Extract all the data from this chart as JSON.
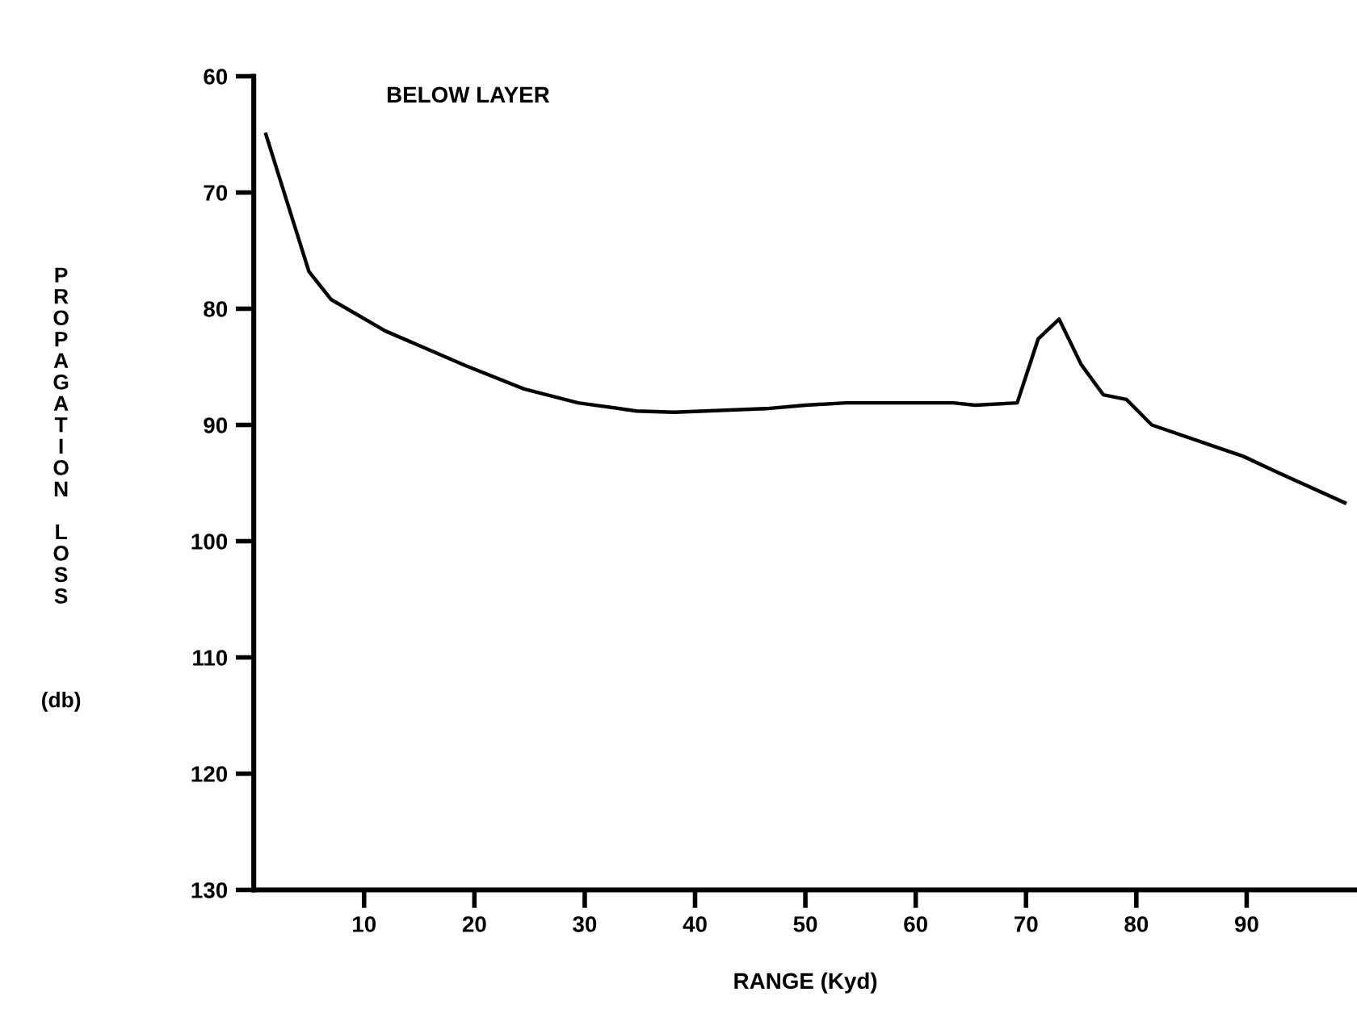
{
  "chart_data": {
    "type": "line",
    "title": "BELOW LAYER",
    "xlabel": "RANGE (Kyd)",
    "ylabel": "PROPAGATION LOSS (db)",
    "x": [
      1.1,
      5.0,
      7.0,
      11.9,
      19.2,
      24.5,
      29.4,
      34.7,
      38.1,
      46.4,
      50.0,
      53.7,
      63.4,
      65.4,
      69.2,
      71.1,
      73.0,
      75.0,
      77.0,
      79.1,
      81.4,
      89.7,
      92.6,
      98.9
    ],
    "series": [
      {
        "color": "#000000",
        "values": [
          65.0,
          76.8,
          79.2,
          81.9,
          84.9,
          86.9,
          88.1,
          88.8,
          88.9,
          88.6,
          88.3,
          88.1,
          88.1,
          88.3,
          88.1,
          82.6,
          80.9,
          84.8,
          87.4,
          87.8,
          90.0,
          92.7,
          94.0,
          96.7
        ]
      }
    ],
    "xlim": [
      0,
      100
    ],
    "xticks": [
      10,
      20,
      30,
      40,
      50,
      60,
      70,
      80,
      90
    ],
    "ylim": [
      130,
      60
    ],
    "yticks": [
      60,
      70,
      80,
      90,
      100,
      110,
      120,
      130
    ],
    "grid": false,
    "marker": "none",
    "line_style": "solid"
  }
}
